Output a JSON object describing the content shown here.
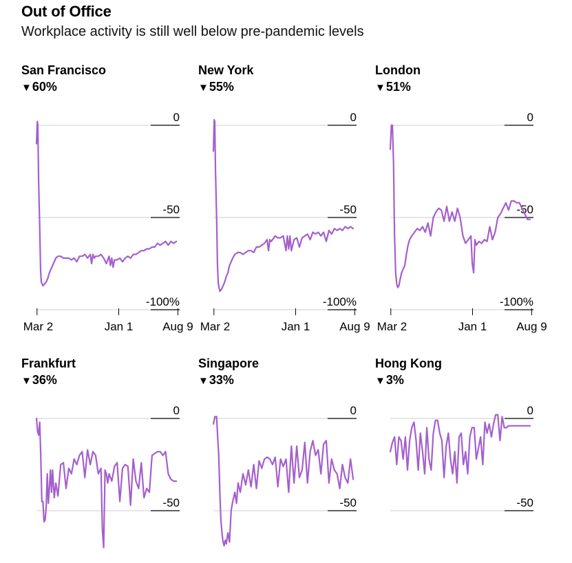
{
  "header": {
    "title": "Out of Office",
    "subtitle": "Workplace activity is still well below pre-pandemic levels"
  },
  "colors": {
    "line": "#a45fcc",
    "grid": "#cccccc",
    "tick_underline": "#000000"
  },
  "chart_data": [
    {
      "type": "line",
      "title": "San Francisco",
      "change_label": "60%",
      "change_direction": "down",
      "x_tick_labels": [
        "Mar 2",
        "Jan 1",
        "Aug 9"
      ],
      "x_ticks": [
        2,
        306,
        526
      ],
      "y_ticks": [
        0,
        -50,
        -100
      ],
      "y_tick_labels": [
        "0",
        "-50",
        "-100%"
      ],
      "ylim": [
        -100,
        3
      ],
      "xlim": [
        0,
        530
      ],
      "grid": true,
      "x": [
        0,
        3,
        5,
        8,
        12,
        15,
        18,
        21,
        24,
        30,
        36,
        42,
        48,
        54,
        60,
        66,
        72,
        80,
        90,
        100,
        110,
        120,
        130,
        140,
        150,
        160,
        170,
        180,
        190,
        200,
        205,
        210,
        215,
        220,
        230,
        240,
        250,
        260,
        270,
        275,
        280,
        285,
        290,
        300,
        310,
        320,
        330,
        340,
        350,
        360,
        370,
        380,
        390,
        400,
        410,
        420,
        430,
        440,
        450,
        460,
        470,
        480,
        490,
        500,
        510,
        520
      ],
      "values": [
        -10,
        2,
        0,
        -30,
        -55,
        -78,
        -85,
        -86,
        -87,
        -86,
        -85,
        -83,
        -80,
        -78,
        -76,
        -74,
        -72,
        -71,
        -71,
        -72,
        -72,
        -72,
        -73,
        -72,
        -74,
        -71,
        -71,
        -70,
        -72,
        -70,
        -75,
        -70,
        -72,
        -71,
        -71,
        -70,
        -72,
        -75,
        -71,
        -76,
        -72,
        -77,
        -73,
        -73,
        -72,
        -74,
        -72,
        -71,
        -72,
        -70,
        -70,
        -69,
        -68,
        -68,
        -67,
        -67,
        -66,
        -66,
        -64,
        -65,
        -64,
        -63,
        -65,
        -63,
        -64,
        -63
      ]
    },
    {
      "type": "line",
      "title": "New York",
      "change_label": "55%",
      "change_direction": "down",
      "x_tick_labels": [
        "Mar 2",
        "Jan 1",
        "Aug 9"
      ],
      "x_ticks": [
        2,
        306,
        526
      ],
      "y_ticks": [
        0,
        -50,
        -100
      ],
      "y_tick_labels": [
        "0",
        "-50",
        "-100%"
      ],
      "ylim": [
        -100,
        3
      ],
      "xlim": [
        0,
        530
      ],
      "grid": true,
      "x": [
        0,
        3,
        5,
        8,
        12,
        15,
        18,
        21,
        24,
        30,
        36,
        42,
        48,
        54,
        60,
        66,
        72,
        80,
        90,
        100,
        110,
        120,
        130,
        140,
        150,
        160,
        170,
        180,
        190,
        200,
        205,
        210,
        215,
        220,
        230,
        240,
        250,
        260,
        270,
        275,
        280,
        285,
        290,
        300,
        310,
        320,
        330,
        340,
        350,
        360,
        370,
        380,
        390,
        400,
        410,
        420,
        430,
        440,
        450,
        460,
        470,
        480,
        490,
        500,
        510,
        520
      ],
      "values": [
        -14,
        3,
        2,
        -25,
        -50,
        -75,
        -85,
        -88,
        -90,
        -89,
        -87,
        -85,
        -82,
        -80,
        -76,
        -74,
        -72,
        -70,
        -69,
        -69,
        -70,
        -69,
        -68,
        -68,
        -69,
        -66,
        -66,
        -65,
        -64,
        -62,
        -68,
        -62,
        -63,
        -62,
        -60,
        -61,
        -61,
        -60,
        -68,
        -60,
        -67,
        -60,
        -68,
        -62,
        -61,
        -66,
        -61,
        -60,
        -59,
        -62,
        -58,
        -59,
        -58,
        -60,
        -58,
        -63,
        -57,
        -59,
        -56,
        -57,
        -56,
        -57,
        -55,
        -56,
        -55,
        -56
      ]
    },
    {
      "type": "line",
      "title": "London",
      "change_label": "51%",
      "change_direction": "down",
      "x_tick_labels": [
        "Mar 2",
        "Jan 1",
        "Aug 9"
      ],
      "x_ticks": [
        2,
        306,
        526
      ],
      "y_ticks": [
        0,
        -50,
        -100
      ],
      "y_tick_labels": [
        "0",
        "-50",
        "-100%"
      ],
      "ylim": [
        -100,
        3
      ],
      "xlim": [
        0,
        530
      ],
      "grid": true,
      "x": [
        0,
        4,
        8,
        12,
        16,
        20,
        24,
        28,
        32,
        36,
        42,
        48,
        54,
        60,
        66,
        72,
        80,
        90,
        100,
        110,
        120,
        130,
        140,
        150,
        160,
        170,
        180,
        190,
        200,
        210,
        220,
        230,
        240,
        250,
        260,
        270,
        280,
        290,
        300,
        305,
        310,
        315,
        320,
        330,
        340,
        350,
        360,
        370,
        380,
        390,
        400,
        410,
        420,
        430,
        440,
        450,
        460,
        470,
        480,
        490,
        500,
        510,
        520
      ],
      "values": [
        -13,
        0,
        0,
        -20,
        -60,
        -80,
        -86,
        -88,
        -87,
        -84,
        -80,
        -78,
        -76,
        -70,
        -65,
        -62,
        -60,
        -58,
        -56,
        -57,
        -55,
        -58,
        -53,
        -60,
        -50,
        -47,
        -45,
        -46,
        -52,
        -44,
        -52,
        -47,
        -52,
        -45,
        -50,
        -60,
        -64,
        -62,
        -60,
        -75,
        -80,
        -62,
        -65,
        -63,
        -64,
        -62,
        -63,
        -55,
        -62,
        -58,
        -50,
        -48,
        -45,
        -42,
        -46,
        -41,
        -41,
        -42,
        -42,
        -45,
        -48,
        -51,
        -51
      ]
    },
    {
      "type": "line",
      "title": "Frankfurt",
      "change_label": "36%",
      "change_direction": "down",
      "x_ticks": [
        2,
        306,
        526
      ],
      "y_ticks": [
        0,
        -50
      ],
      "y_tick_labels": [
        "0",
        "-50"
      ],
      "ylim": [
        -70,
        3
      ],
      "xlim": [
        0,
        530
      ],
      "grid": true,
      "x": [
        0,
        4,
        8,
        12,
        16,
        20,
        24,
        28,
        32,
        36,
        40,
        44,
        48,
        52,
        56,
        60,
        66,
        72,
        80,
        90,
        100,
        110,
        120,
        130,
        140,
        150,
        160,
        170,
        180,
        190,
        200,
        210,
        220,
        230,
        240,
        245,
        250,
        255,
        260,
        265,
        270,
        280,
        290,
        300,
        310,
        320,
        330,
        340,
        350,
        360,
        370,
        380,
        390,
        400,
        410,
        420,
        430,
        440,
        450,
        460,
        470,
        480,
        490,
        500,
        510,
        520
      ],
      "values": [
        0,
        -7,
        -9,
        -2,
        -20,
        -45,
        -45,
        -56,
        -55,
        -48,
        -30,
        -46,
        -38,
        -28,
        -40,
        -28,
        -43,
        -35,
        -42,
        -25,
        -24,
        -38,
        -27,
        -30,
        -22,
        -25,
        -20,
        -18,
        -32,
        -17,
        -25,
        -18,
        -20,
        -30,
        -27,
        -60,
        -70,
        -28,
        -30,
        -35,
        -30,
        -34,
        -26,
        -24,
        -45,
        -27,
        -25,
        -26,
        -47,
        -22,
        -34,
        -38,
        -24,
        -43,
        -38,
        -40,
        -20,
        -19,
        -18,
        -18,
        -20,
        -18,
        -30,
        -33,
        -34,
        -34
      ]
    },
    {
      "type": "line",
      "title": "Singapore",
      "change_label": "33%",
      "change_direction": "down",
      "x_ticks": [
        2,
        306,
        526
      ],
      "y_ticks": [
        0,
        -50
      ],
      "y_tick_labels": [
        "0",
        "-50"
      ],
      "ylim": [
        -70,
        3
      ],
      "xlim": [
        0,
        530
      ],
      "grid": true,
      "x": [
        0,
        6,
        12,
        16,
        20,
        24,
        28,
        32,
        36,
        40,
        44,
        48,
        54,
        60,
        66,
        72,
        80,
        86,
        92,
        100,
        110,
        120,
        130,
        140,
        150,
        160,
        170,
        180,
        190,
        200,
        210,
        220,
        230,
        240,
        250,
        260,
        270,
        280,
        290,
        300,
        310,
        320,
        330,
        340,
        350,
        360,
        370,
        380,
        390,
        400,
        410,
        420,
        430,
        440,
        450,
        460,
        470,
        480,
        490,
        500,
        510,
        520
      ],
      "values": [
        -3,
        1,
        1,
        -10,
        -20,
        -40,
        -55,
        -62,
        -67,
        -69,
        -66,
        -68,
        -62,
        -67,
        -50,
        -45,
        -40,
        -46,
        -35,
        -40,
        -30,
        -36,
        -28,
        -37,
        -25,
        -38,
        -23,
        -27,
        -22,
        -21,
        -22,
        -25,
        -21,
        -37,
        -22,
        -26,
        -22,
        -40,
        -15,
        -35,
        -15,
        -32,
        -28,
        -13,
        -35,
        -18,
        -12,
        -20,
        -17,
        -30,
        -14,
        -12,
        -35,
        -22,
        -28,
        -30,
        -38,
        -25,
        -32,
        -35,
        -22,
        -33
      ]
    },
    {
      "type": "line",
      "title": "Hong Kong",
      "change_label": "3%",
      "change_direction": "down",
      "x_ticks": [
        2,
        306,
        526
      ],
      "y_ticks": [
        0,
        -50
      ],
      "y_tick_labels": [
        "0",
        "-50"
      ],
      "ylim": [
        -70,
        3
      ],
      "xlim": [
        0,
        530
      ],
      "grid": true,
      "x": [
        0,
        8,
        16,
        24,
        32,
        40,
        48,
        56,
        64,
        72,
        80,
        88,
        96,
        104,
        112,
        120,
        128,
        136,
        144,
        152,
        160,
        168,
        176,
        184,
        192,
        200,
        208,
        216,
        224,
        232,
        240,
        248,
        256,
        264,
        272,
        280,
        288,
        296,
        304,
        312,
        320,
        328,
        336,
        344,
        352,
        360,
        368,
        376,
        384,
        392,
        400,
        408,
        416,
        424,
        432,
        440,
        448,
        456,
        464,
        472,
        480,
        488,
        496,
        504,
        512,
        520
      ],
      "values": [
        -18,
        -13,
        -10,
        -25,
        -10,
        -12,
        -22,
        -10,
        -28,
        -12,
        -5,
        -2,
        -12,
        -28,
        -8,
        -18,
        -30,
        -5,
        -22,
        -28,
        -8,
        -1,
        -1,
        -8,
        -12,
        -32,
        -15,
        -8,
        -22,
        -30,
        -18,
        -35,
        -10,
        -8,
        -25,
        -18,
        -30,
        -10,
        -5,
        -5,
        -22,
        -16,
        -10,
        -25,
        -2,
        -8,
        -3,
        -10,
        -3,
        2,
        2,
        -12,
        1,
        -5,
        -5,
        -4,
        -4,
        -4,
        -4,
        -4,
        -4,
        -4,
        -4,
        -4,
        -4,
        -4
      ]
    }
  ]
}
